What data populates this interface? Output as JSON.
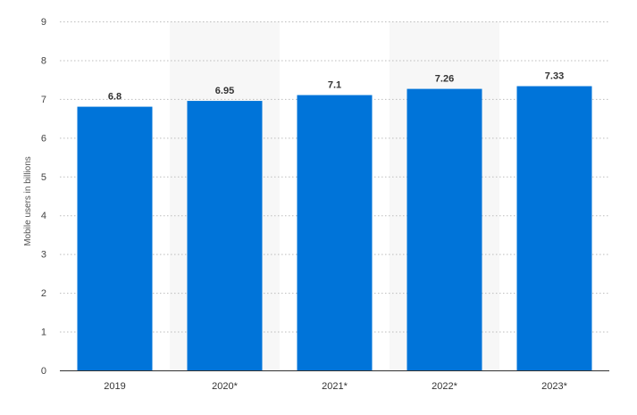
{
  "chart_data": {
    "type": "bar",
    "categories": [
      "2019",
      "2020*",
      "2021*",
      "2022*",
      "2023*"
    ],
    "values": [
      6.8,
      6.95,
      7.1,
      7.26,
      7.33
    ],
    "value_labels": [
      "6.8",
      "6.95",
      "7.1",
      "7.26",
      "7.33"
    ],
    "title": "",
    "xlabel": "",
    "ylabel": "Mobile users in billions",
    "ylim": [
      0,
      9
    ],
    "yticks": [
      0,
      1,
      2,
      3,
      4,
      5,
      6,
      7,
      8,
      9
    ],
    "grid": true,
    "legend": "none",
    "bar_color": "#0074d9",
    "shaded_band_color": "#f7f7f7"
  }
}
